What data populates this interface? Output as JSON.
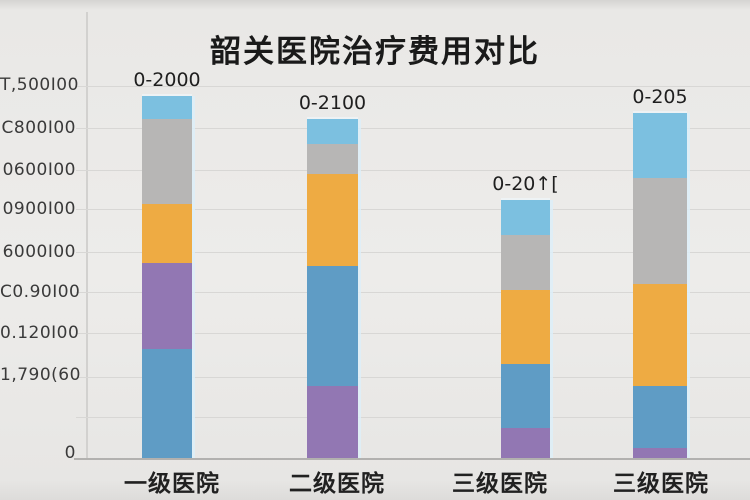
{
  "chart_data": {
    "type": "bar",
    "stacked": true,
    "title": "韶关医院治疗费用对比",
    "legend": "none",
    "grid": "horizontal",
    "categories": [
      "一级医院",
      "二级医院",
      "三级医院",
      "三级医院"
    ],
    "bar_value_labels": [
      "0-2000",
      "0-2100",
      "0-20↑[",
      "0-205"
    ],
    "y_axis_tick_labels": [
      "T,500I00",
      "C800I00",
      "0600I00",
      "0900I00",
      "6000I00",
      "C0.90I00",
      "0.120I00",
      "1,790(60",
      "0"
    ],
    "ylim_percent": [
      0,
      100
    ],
    "palette": {
      "lightblue": "#7cc0e0",
      "gray": "#b7b6b5",
      "orange": "#eeab43",
      "blue": "#5f9cc5",
      "purple": "#9277b3"
    },
    "bars": [
      {
        "category": "一级医院",
        "top_label": "0-2000",
        "segments_bottom_to_top": [
          {
            "color": "blue",
            "value_pct": 29.5
          },
          {
            "color": "purple",
            "value_pct": 23.1
          },
          {
            "color": "orange",
            "value_pct": 15.8
          },
          {
            "color": "gray",
            "value_pct": 22.8
          },
          {
            "color": "lightblue",
            "value_pct": 6.2
          }
        ]
      },
      {
        "category": "二级医院",
        "top_label": "0-2100",
        "segments_bottom_to_top": [
          {
            "color": "purple",
            "value_pct": 19.6
          },
          {
            "color": "blue",
            "value_pct": 32.2
          },
          {
            "color": "orange",
            "value_pct": 24.7
          },
          {
            "color": "gray",
            "value_pct": 8.0
          },
          {
            "color": "lightblue",
            "value_pct": 6.7
          }
        ]
      },
      {
        "category": "三级医院",
        "top_label": "0-20↑[",
        "segments_bottom_to_top": [
          {
            "color": "purple",
            "value_pct": 8.3
          },
          {
            "color": "blue",
            "value_pct": 17.2
          },
          {
            "color": "orange",
            "value_pct": 19.8
          },
          {
            "color": "gray",
            "value_pct": 14.7
          },
          {
            "color": "lightblue",
            "value_pct": 9.4
          }
        ]
      },
      {
        "category": "三级医院",
        "top_label": "0-205",
        "segments_bottom_to_top": [
          {
            "color": "purple",
            "value_pct": 3.0
          },
          {
            "color": "blue",
            "value_pct": 16.6
          },
          {
            "color": "orange",
            "value_pct": 27.3
          },
          {
            "color": "gray",
            "value_pct": 28.4
          },
          {
            "color": "lightblue",
            "value_pct": 17.4
          }
        ]
      }
    ]
  }
}
